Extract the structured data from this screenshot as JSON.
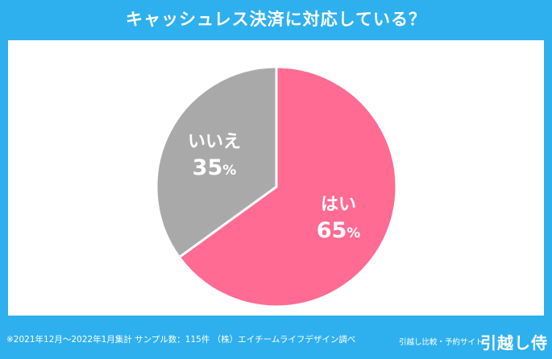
{
  "chart_data": {
    "type": "pie",
    "title": "キャッシュレス決済に対応している？",
    "slices": [
      {
        "label": "はい",
        "value": 65,
        "display": "65",
        "unit": "%",
        "color": "#ff6b93"
      },
      {
        "label": "いいえ",
        "value": 35,
        "display": "35",
        "unit": "%",
        "color": "#a9a9a9"
      }
    ],
    "start_angle_deg": 0,
    "direction": "clockwise"
  },
  "footer": {
    "note": "※2021年12月～2022年1月集計 サンプル数：115件 （株）エイチームライフデザイン調べ",
    "brand_sub": "引越し比較・予約サイト",
    "brand": "引越し侍"
  },
  "colors": {
    "background": "#2fb0ee",
    "panel": "#ffffff"
  }
}
